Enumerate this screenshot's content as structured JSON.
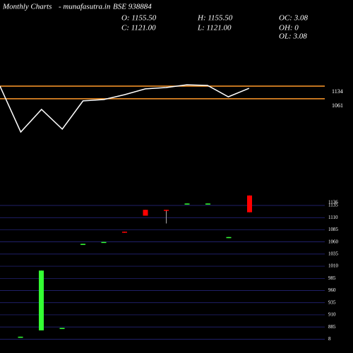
{
  "header": {
    "title": "Monthly Charts",
    "site": "- munafasutra.in",
    "symbol": "BSE 938884",
    "open": "O: 1155.50",
    "high": "H: 1155.50",
    "oc": "OC: 3.08",
    "close": "C: 1121.00",
    "low": "L: 1121.00",
    "oh": "OH: 0",
    "ol": "OL: 3.08"
  },
  "chart_data": [
    {
      "type": "line",
      "color": "#ffffff",
      "level_color": "#ff9a2a",
      "values": [
        1163,
        926,
        1043,
        941,
        1087,
        1094,
        1119,
        1149,
        1156,
        1170,
        1167,
        1108,
        1152
      ],
      "levels": [
        1163,
        1098
      ],
      "ylim": [
        623,
        1608.5
      ],
      "yticks": [
        1134,
        1061
      ]
    },
    {
      "type": "candlestick",
      "up_color": "#33ff33",
      "down_color": "#ff0000",
      "grid_color": "#2a2a8a",
      "open": [
        863,
        878,
        881,
        1054,
        1058,
        1081,
        1126,
        1126,
        1137,
        1137,
        1068,
        1155.5
      ],
      "high": [
        865,
        1001,
        883,
        1056,
        1060,
        1081,
        1126,
        1126,
        1139,
        1139,
        1070,
        1155.5
      ],
      "low": [
        863,
        878,
        881,
        1054,
        1058,
        1079,
        1114,
        1098,
        1137,
        1137,
        1068,
        1121
      ],
      "close": [
        865,
        1001,
        883,
        1056,
        1060,
        1079,
        1114,
        1125,
        1139,
        1139,
        1070,
        1121
      ],
      "ylim": [
        846,
        1151
      ],
      "last_label": 1136,
      "yticks": [
        1135,
        1110,
        1085,
        1060,
        1035,
        1010,
        985,
        960,
        935,
        910,
        885,
        {
          "value": 860,
          "label": "8"
        }
      ]
    }
  ]
}
